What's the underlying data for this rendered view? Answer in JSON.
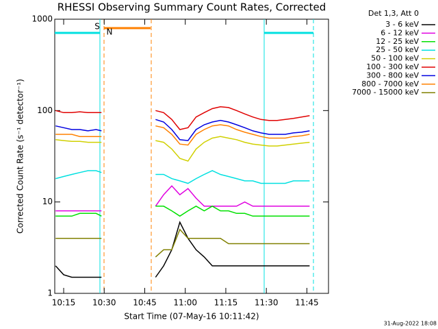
{
  "chart_data": {
    "type": "line",
    "title": "RHESSI Observing Summary Count Rates, Corrected",
    "x_label": "Start Time (07-May-16 10:11:42)",
    "y_label": "Corrected Count Rate (s⁻¹ detector⁻¹)",
    "legend_title": "Det 1,3, Att 0",
    "footer": "31-Aug-2022 18:08",
    "annotations": [
      {
        "text": "S",
        "color": "#ff8000"
      },
      {
        "text": "N",
        "color": "#00e0e0"
      }
    ],
    "log_y": true,
    "grid": false,
    "legend": "right",
    "xlim": [
      "10:11:42",
      "11:53"
    ],
    "xticks": [
      "10:15",
      "10:30",
      "10:45",
      "11:00",
      "11:15",
      "11:30",
      "11:45"
    ],
    "ylim": [
      1,
      1000
    ],
    "yticks": [
      1,
      10,
      100,
      1000
    ],
    "x": [
      "10:12",
      "10:15",
      "10:18",
      "10:21",
      "10:24",
      "10:27",
      "10:29",
      "10:40",
      "10:49",
      "10:52",
      "10:55",
      "10:58",
      "11:01",
      "11:04",
      "11:07",
      "11:10",
      "11:13",
      "11:16",
      "11:19",
      "11:22",
      "11:25",
      "11:28",
      "11:31",
      "11:34",
      "11:37",
      "11:40",
      "11:43",
      "11:46"
    ],
    "series": [
      {
        "name": "3 - 6 keV",
        "color": "#000000",
        "values": [
          2,
          1.6,
          1.5,
          1.5,
          1.5,
          1.5,
          1.5,
          null,
          1.5,
          2,
          3,
          6,
          4,
          3,
          2.5,
          2,
          2,
          2,
          2,
          2,
          2,
          2,
          2,
          2,
          2,
          2,
          2,
          2
        ]
      },
      {
        "name": "6 - 12 keV",
        "color": "#e000e0",
        "values": [
          8,
          8,
          8,
          8,
          8,
          8,
          8,
          null,
          9,
          12,
          15,
          12,
          14,
          11,
          9,
          9,
          9,
          9,
          9,
          10,
          9,
          9,
          9,
          9,
          9,
          9,
          9,
          9
        ]
      },
      {
        "name": "12 - 25 keV",
        "color": "#00e000",
        "values": [
          7,
          7,
          7,
          7.5,
          7.5,
          7.5,
          7,
          null,
          9,
          9,
          8,
          7,
          8,
          9,
          8,
          9,
          8,
          8,
          7.5,
          7.5,
          7,
          7,
          7,
          7,
          7,
          7,
          7,
          7
        ]
      },
      {
        "name": "25 - 50 keV",
        "color": "#00e0e0",
        "values": [
          18,
          19,
          20,
          21,
          22,
          22,
          21,
          null,
          20,
          20,
          18,
          17,
          16,
          18,
          20,
          22,
          20,
          19,
          18,
          17,
          17,
          16,
          16,
          16,
          16,
          17,
          17,
          17
        ]
      },
      {
        "name": "50 - 100 keV",
        "color": "#d0d000",
        "values": [
          48,
          47,
          46,
          46,
          45,
          45,
          45,
          null,
          47,
          45,
          38,
          30,
          28,
          38,
          45,
          50,
          52,
          50,
          48,
          45,
          43,
          42,
          41,
          41,
          42,
          43,
          44,
          45
        ]
      },
      {
        "name": "100 - 300 keV",
        "color": "#e00000",
        "values": [
          100,
          95,
          95,
          97,
          95,
          95,
          95,
          null,
          100,
          95,
          80,
          62,
          65,
          85,
          95,
          105,
          110,
          108,
          100,
          92,
          85,
          80,
          78,
          78,
          80,
          82,
          85,
          88
        ]
      },
      {
        "name": "300 - 800 keV",
        "color": "#0000e0",
        "values": [
          68,
          65,
          62,
          62,
          60,
          62,
          60,
          null,
          80,
          75,
          62,
          48,
          47,
          62,
          70,
          75,
          78,
          75,
          70,
          65,
          60,
          57,
          55,
          55,
          55,
          57,
          58,
          60
        ]
      },
      {
        "name": "800 - 7000 keV",
        "color": "#ff8000",
        "values": [
          55,
          55,
          55,
          52,
          52,
          52,
          52,
          null,
          68,
          65,
          55,
          43,
          42,
          55,
          62,
          68,
          70,
          68,
          62,
          58,
          55,
          52,
          50,
          50,
          50,
          52,
          53,
          55
        ]
      },
      {
        "name": "7000 - 15000 keV",
        "color": "#808000",
        "values": [
          4,
          4,
          4,
          4,
          4,
          4,
          4,
          null,
          2.5,
          3,
          3,
          5,
          4,
          4,
          4,
          4,
          4,
          3.5,
          3.5,
          3.5,
          3.5,
          3.5,
          3.5,
          3.5,
          3.5,
          3.5,
          3.5,
          3.5
        ]
      }
    ]
  }
}
